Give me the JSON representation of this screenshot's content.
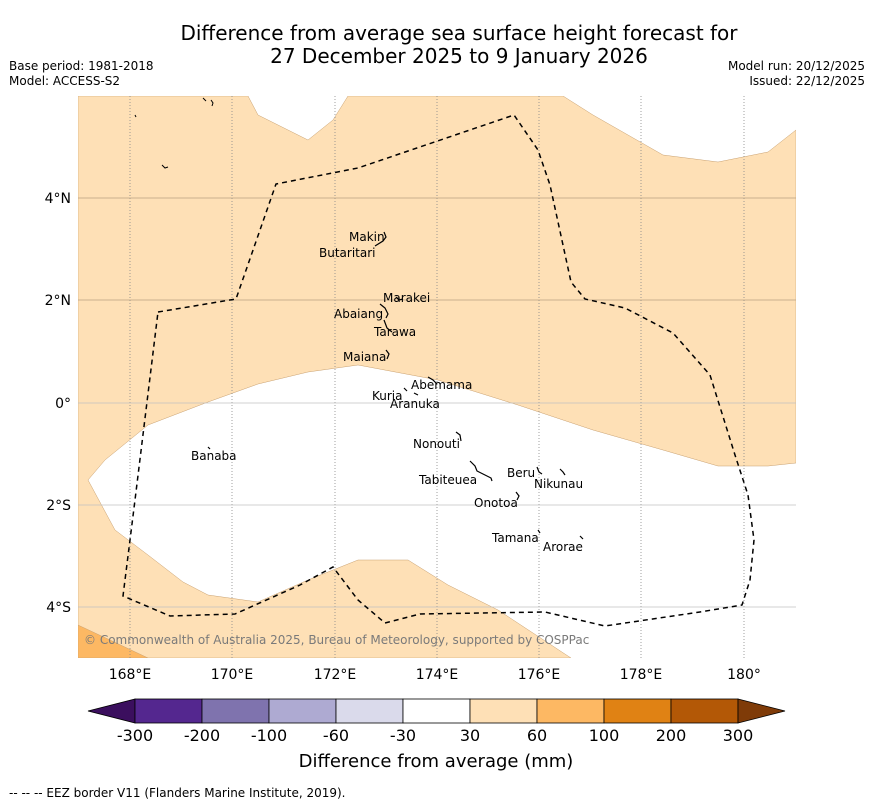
{
  "title_line1": "Difference from average sea surface height forecast for",
  "title_line2": "27 December 2025 to 9 January 2026",
  "base_period": "Base period: 1981-2018",
  "model": "Model: ACCESS-S2",
  "model_run": "Model run: 20/12/2025",
  "issued": "Issued: 22/12/2025",
  "copyright": "© Commonwealth of Australia 2025, Bureau of Meteorology, supported by COSPPac",
  "footer": "--  --  -- EEZ border V11 (Flanders Marine Institute, 2019).",
  "lon_labels": [
    "168°E",
    "170°E",
    "172°E",
    "174°E",
    "176°E",
    "178°E",
    "180°"
  ],
  "lat_labels": [
    "4°N",
    "2°N",
    "0°",
    "2°S",
    "4°S"
  ],
  "islands": [
    "Makin",
    "Butaritari",
    "Marakei",
    "Abaiang",
    "Tarawa",
    "Maiana",
    "Abemama",
    "Kuria",
    "Aranuka",
    "Nonouti",
    "Banaba",
    "Tabiteuea",
    "Beru",
    "Nikunau",
    "Onotoa",
    "Tamana",
    "Arorae"
  ],
  "colorbar": {
    "title": "Difference from average (mm)",
    "tick_labels": [
      "-300",
      "-200",
      "-100",
      "-60",
      "-30",
      "30",
      "60",
      "100",
      "200",
      "300"
    ],
    "colors": [
      "#3b0f5e",
      "#54278f",
      "#7f73ae",
      "#aeaad2",
      "#dadaeb",
      "#ffffff",
      "#fee0b6",
      "#fdb863",
      "#e08214",
      "#b35806",
      "#7f3b08"
    ]
  }
}
